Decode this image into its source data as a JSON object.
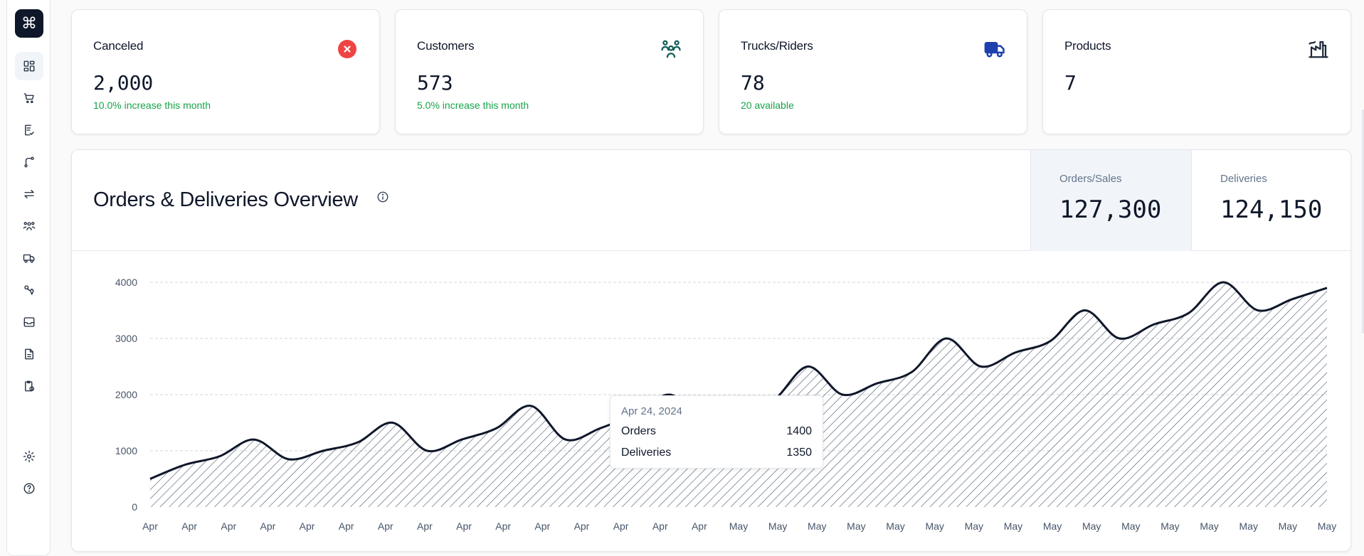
{
  "sidebar": {
    "logo": "⌘",
    "items": [
      {
        "icon": "dashboard-icon"
      },
      {
        "icon": "cart-icon"
      },
      {
        "icon": "orders-list-icon"
      },
      {
        "icon": "route-icon"
      },
      {
        "icon": "transfer-icon"
      },
      {
        "icon": "customers-icon"
      },
      {
        "icon": "truck-icon"
      },
      {
        "icon": "locations-icon"
      },
      {
        "icon": "inbox-icon"
      },
      {
        "icon": "document-icon"
      },
      {
        "icon": "clipboard-clock-icon"
      }
    ],
    "bottom": [
      {
        "icon": "settings-icon"
      },
      {
        "icon": "help-icon"
      }
    ]
  },
  "cards": [
    {
      "label": "Canceled",
      "value": "2,000",
      "sub": "10.0% increase this month",
      "icon": "x-circle-icon",
      "icon_color": "#ef4444"
    },
    {
      "label": "Customers",
      "value": "573",
      "sub": "5.0% increase this month",
      "icon": "customers-icon",
      "icon_color": "#115e59"
    },
    {
      "label": "Trucks/Riders",
      "value": "78",
      "sub": "20 available",
      "icon": "truck-icon",
      "icon_color": "#1e40af"
    },
    {
      "label": "Products",
      "value": "7",
      "sub": "",
      "icon": "factory-icon",
      "icon_color": "#1e293b"
    }
  ],
  "overview": {
    "title": "Orders & Deliveries Overview",
    "stats": [
      {
        "label": "Orders/Sales",
        "value": "127,300"
      },
      {
        "label": "Deliveries",
        "value": "124,150"
      }
    ]
  },
  "tooltip": {
    "date": "Apr 24, 2024",
    "rows": [
      {
        "label": "Orders",
        "value": "1400"
      },
      {
        "label": "Deliveries",
        "value": "1350"
      }
    ]
  },
  "colors": {
    "accent": "#0f172a",
    "positive": "#16a34a",
    "canceled": "#ef4444"
  },
  "chart_data": {
    "type": "area",
    "ylim": [
      0,
      4000
    ],
    "yticks": [
      0,
      1000,
      2000,
      3000,
      4000
    ],
    "grid": true,
    "xticks": [
      "Apr",
      "Apr",
      "Apr",
      "Apr",
      "Apr",
      "Apr",
      "Apr",
      "Apr",
      "Apr",
      "Apr",
      "Apr",
      "Apr",
      "Apr",
      "Apr",
      "Apr",
      "May",
      "May",
      "May",
      "May",
      "May",
      "May",
      "May",
      "May",
      "May",
      "May",
      "May",
      "May",
      "May",
      "May",
      "May",
      "May"
    ],
    "series": [
      {
        "values": [
          500,
          750,
          900,
          1200,
          850,
          1000,
          1150,
          1500,
          1000,
          1200,
          1400,
          1800,
          1200,
          1400,
          1650,
          2000,
          1600,
          1800,
          1900,
          2500,
          2000,
          2200,
          2400,
          3000,
          2500,
          2750,
          2950,
          3500,
          3000,
          3250,
          3450,
          4000,
          3500,
          3700,
          3900
        ]
      }
    ]
  }
}
